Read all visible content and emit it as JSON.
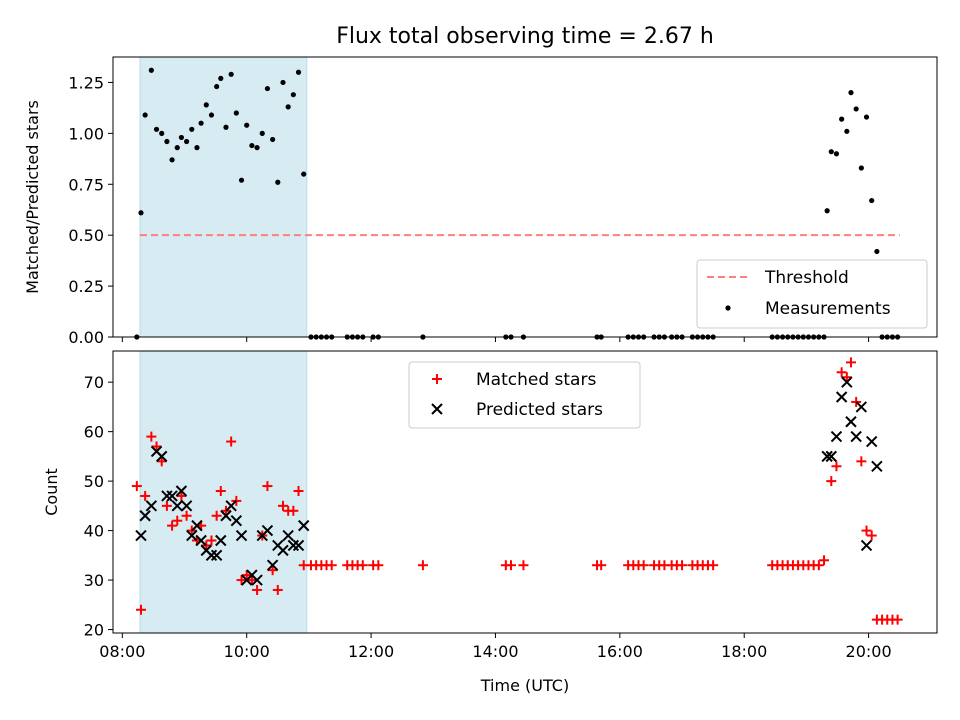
{
  "chart_data": [
    {
      "type": "scatter",
      "title": "Flux total observing time = 2.67 h",
      "xlabel": "",
      "ylabel": "Matched/Predicted stars",
      "xlim": [
        "07:51",
        "21:06"
      ],
      "ylim": [
        0,
        1.375
      ],
      "yticks": [
        0.0,
        0.25,
        0.5,
        0.75,
        1.0,
        1.25
      ],
      "ytick_labels": [
        "0.00",
        "0.25",
        "0.50",
        "0.75",
        "1.00",
        "1.25"
      ],
      "xticks": [
        "08:00",
        "10:00",
        "12:00",
        "14:00",
        "16:00",
        "18:00",
        "20:00"
      ],
      "shaded_interval": [
        "08:17",
        "10:58"
      ],
      "shaded_color": "#add8e6",
      "legend_position": "lower-right",
      "threshold": {
        "name": "Threshold",
        "value": 0.5,
        "x": [
          "08:17",
          "20:30"
        ],
        "color": "#ff7f7f"
      },
      "series": [
        {
          "name": "Measurements",
          "color": "#000000",
          "points": [
            [
              "08:14",
              0.0
            ],
            [
              "08:18",
              0.61
            ],
            [
              "08:22",
              1.09
            ],
            [
              "08:28",
              1.31
            ],
            [
              "08:33",
              1.02
            ],
            [
              "08:38",
              1.0
            ],
            [
              "08:43",
              0.96
            ],
            [
              "08:48",
              0.87
            ],
            [
              "08:53",
              0.93
            ],
            [
              "08:57",
              0.98
            ],
            [
              "09:02",
              0.96
            ],
            [
              "09:07",
              1.02
            ],
            [
              "09:12",
              0.93
            ],
            [
              "09:16",
              1.05
            ],
            [
              "09:21",
              1.14
            ],
            [
              "09:26",
              1.09
            ],
            [
              "09:31",
              1.23
            ],
            [
              "09:35",
              1.27
            ],
            [
              "09:40",
              1.03
            ],
            [
              "09:45",
              1.29
            ],
            [
              "09:50",
              1.1
            ],
            [
              "09:55",
              0.77
            ],
            [
              "10:00",
              1.04
            ],
            [
              "10:05",
              0.94
            ],
            [
              "10:10",
              0.93
            ],
            [
              "10:15",
              1.0
            ],
            [
              "10:20",
              1.22
            ],
            [
              "10:25",
              0.97
            ],
            [
              "10:30",
              0.76
            ],
            [
              "10:35",
              1.25
            ],
            [
              "10:40",
              1.13
            ],
            [
              "10:45",
              1.19
            ],
            [
              "10:50",
              1.3
            ],
            [
              "10:55",
              0.8
            ],
            [
              "11:02",
              0.0
            ],
            [
              "11:07",
              0.0
            ],
            [
              "11:12",
              0.0
            ],
            [
              "11:17",
              0.0
            ],
            [
              "11:22",
              0.0
            ],
            [
              "11:37",
              0.0
            ],
            [
              "11:42",
              0.0
            ],
            [
              "11:47",
              0.0
            ],
            [
              "11:52",
              0.0
            ],
            [
              "12:02",
              0.0
            ],
            [
              "12:07",
              0.0
            ],
            [
              "12:50",
              0.0
            ],
            [
              "14:10",
              0.0
            ],
            [
              "14:15",
              0.0
            ],
            [
              "14:27",
              0.0
            ],
            [
              "15:38",
              0.0
            ],
            [
              "15:42",
              0.0
            ],
            [
              "16:08",
              0.0
            ],
            [
              "16:13",
              0.0
            ],
            [
              "16:18",
              0.0
            ],
            [
              "16:23",
              0.0
            ],
            [
              "16:33",
              0.0
            ],
            [
              "16:38",
              0.0
            ],
            [
              "16:43",
              0.0
            ],
            [
              "16:50",
              0.0
            ],
            [
              "16:55",
              0.0
            ],
            [
              "17:00",
              0.0
            ],
            [
              "17:10",
              0.0
            ],
            [
              "17:15",
              0.0
            ],
            [
              "17:20",
              0.0
            ],
            [
              "17:25",
              0.0
            ],
            [
              "17:30",
              0.0
            ],
            [
              "18:27",
              0.0
            ],
            [
              "18:32",
              0.0
            ],
            [
              "18:37",
              0.0
            ],
            [
              "18:42",
              0.0
            ],
            [
              "18:47",
              0.0
            ],
            [
              "18:52",
              0.0
            ],
            [
              "18:57",
              0.0
            ],
            [
              "19:02",
              0.0
            ],
            [
              "19:07",
              0.0
            ],
            [
              "19:12",
              0.0
            ],
            [
              "19:17",
              0.0
            ],
            [
              "19:20",
              0.62
            ],
            [
              "19:24",
              0.91
            ],
            [
              "19:29",
              0.9
            ],
            [
              "19:34",
              1.07
            ],
            [
              "19:39",
              1.01
            ],
            [
              "19:43",
              1.2
            ],
            [
              "19:48",
              1.12
            ],
            [
              "19:53",
              0.83
            ],
            [
              "19:58",
              1.08
            ],
            [
              "20:03",
              0.67
            ],
            [
              "20:08",
              0.42
            ],
            [
              "20:13",
              0.0
            ],
            [
              "20:18",
              0.0
            ],
            [
              "20:23",
              0.0
            ],
            [
              "20:28",
              0.0
            ]
          ]
        }
      ]
    },
    {
      "type": "scatter",
      "title": "",
      "xlabel": "Time (UTC)",
      "ylabel": "Count",
      "xlim": [
        "07:51",
        "21:06"
      ],
      "ylim": [
        19.3,
        76.3
      ],
      "yticks": [
        20,
        30,
        40,
        50,
        60,
        70
      ],
      "ytick_labels": [
        "20",
        "30",
        "40",
        "50",
        "60",
        "70"
      ],
      "xticks": [
        "08:00",
        "10:00",
        "12:00",
        "14:00",
        "16:00",
        "18:00",
        "20:00"
      ],
      "xtick_labels": [
        "08:00",
        "10:00",
        "12:00",
        "14:00",
        "16:00",
        "18:00",
        "20:00"
      ],
      "shaded_interval": [
        "08:17",
        "10:58"
      ],
      "shaded_color": "#add8e6",
      "legend_position": "upper-center",
      "series": [
        {
          "name": "Matched stars",
          "color": "#ff0000",
          "marker": "plus",
          "points": [
            [
              "08:14",
              49
            ],
            [
              "08:18",
              24
            ],
            [
              "08:22",
              47
            ],
            [
              "08:28",
              59
            ],
            [
              "08:33",
              57
            ],
            [
              "08:38",
              54
            ],
            [
              "08:43",
              45
            ],
            [
              "08:48",
              41
            ],
            [
              "08:53",
              42
            ],
            [
              "08:57",
              47
            ],
            [
              "09:02",
              43
            ],
            [
              "09:07",
              40
            ],
            [
              "09:12",
              38
            ],
            [
              "09:16",
              41
            ],
            [
              "09:21",
              37
            ],
            [
              "09:26",
              38
            ],
            [
              "09:31",
              43
            ],
            [
              "09:35",
              48
            ],
            [
              "09:40",
              44
            ],
            [
              "09:45",
              58
            ],
            [
              "09:50",
              46
            ],
            [
              "09:55",
              30
            ],
            [
              "10:00",
              31
            ],
            [
              "10:05",
              30
            ],
            [
              "10:10",
              28
            ],
            [
              "10:15",
              39
            ],
            [
              "10:20",
              49
            ],
            [
              "10:25",
              32
            ],
            [
              "10:30",
              28
            ],
            [
              "10:35",
              45
            ],
            [
              "10:40",
              44
            ],
            [
              "10:45",
              44
            ],
            [
              "10:50",
              48
            ],
            [
              "10:55",
              33
            ],
            [
              "11:02",
              33
            ],
            [
              "11:07",
              33
            ],
            [
              "11:12",
              33
            ],
            [
              "11:17",
              33
            ],
            [
              "11:22",
              33
            ],
            [
              "11:37",
              33
            ],
            [
              "11:42",
              33
            ],
            [
              "11:47",
              33
            ],
            [
              "11:52",
              33
            ],
            [
              "12:02",
              33
            ],
            [
              "12:07",
              33
            ],
            [
              "12:50",
              33
            ],
            [
              "14:10",
              33
            ],
            [
              "14:15",
              33
            ],
            [
              "14:27",
              33
            ],
            [
              "15:38",
              33
            ],
            [
              "15:42",
              33
            ],
            [
              "16:08",
              33
            ],
            [
              "16:13",
              33
            ],
            [
              "16:18",
              33
            ],
            [
              "16:23",
              33
            ],
            [
              "16:33",
              33
            ],
            [
              "16:38",
              33
            ],
            [
              "16:43",
              33
            ],
            [
              "16:50",
              33
            ],
            [
              "16:55",
              33
            ],
            [
              "17:00",
              33
            ],
            [
              "17:10",
              33
            ],
            [
              "17:15",
              33
            ],
            [
              "17:20",
              33
            ],
            [
              "17:25",
              33
            ],
            [
              "17:30",
              33
            ],
            [
              "18:27",
              33
            ],
            [
              "18:32",
              33
            ],
            [
              "18:37",
              33
            ],
            [
              "18:42",
              33
            ],
            [
              "18:47",
              33
            ],
            [
              "18:52",
              33
            ],
            [
              "18:57",
              33
            ],
            [
              "19:02",
              33
            ],
            [
              "19:07",
              33
            ],
            [
              "19:12",
              33
            ],
            [
              "19:17",
              34
            ],
            [
              "19:24",
              50
            ],
            [
              "19:29",
              53
            ],
            [
              "19:34",
              72
            ],
            [
              "19:39",
              71
            ],
            [
              "19:43",
              74
            ],
            [
              "19:48",
              66
            ],
            [
              "19:53",
              54
            ],
            [
              "19:58",
              40
            ],
            [
              "20:03",
              39
            ],
            [
              "20:08",
              22
            ],
            [
              "20:13",
              22
            ],
            [
              "20:18",
              22
            ],
            [
              "20:23",
              22
            ],
            [
              "20:28",
              22
            ]
          ]
        },
        {
          "name": "Predicted stars",
          "color": "#000000",
          "marker": "x",
          "points": [
            [
              "08:18",
              39
            ],
            [
              "08:22",
              43
            ],
            [
              "08:28",
              45
            ],
            [
              "08:33",
              56
            ],
            [
              "08:38",
              55
            ],
            [
              "08:43",
              47
            ],
            [
              "08:48",
              47
            ],
            [
              "08:53",
              45
            ],
            [
              "08:57",
              48
            ],
            [
              "09:02",
              45
            ],
            [
              "09:07",
              39
            ],
            [
              "09:12",
              41
            ],
            [
              "09:16",
              38
            ],
            [
              "09:21",
              36
            ],
            [
              "09:26",
              35
            ],
            [
              "09:31",
              35
            ],
            [
              "09:35",
              38
            ],
            [
              "09:40",
              43
            ],
            [
              "09:45",
              45
            ],
            [
              "09:50",
              42
            ],
            [
              "09:55",
              39
            ],
            [
              "10:00",
              30
            ],
            [
              "10:05",
              31
            ],
            [
              "10:10",
              30
            ],
            [
              "10:15",
              39
            ],
            [
              "10:20",
              40
            ],
            [
              "10:25",
              33
            ],
            [
              "10:30",
              37
            ],
            [
              "10:35",
              36
            ],
            [
              "10:40",
              39
            ],
            [
              "10:45",
              37
            ],
            [
              "10:50",
              37
            ],
            [
              "10:55",
              41
            ],
            [
              "19:20",
              55
            ],
            [
              "19:24",
              55
            ],
            [
              "19:29",
              59
            ],
            [
              "19:34",
              67
            ],
            [
              "19:39",
              70
            ],
            [
              "19:43",
              62
            ],
            [
              "19:48",
              59
            ],
            [
              "19:53",
              65
            ],
            [
              "19:58",
              37
            ],
            [
              "20:03",
              58
            ],
            [
              "20:08",
              53
            ]
          ]
        }
      ]
    }
  ]
}
